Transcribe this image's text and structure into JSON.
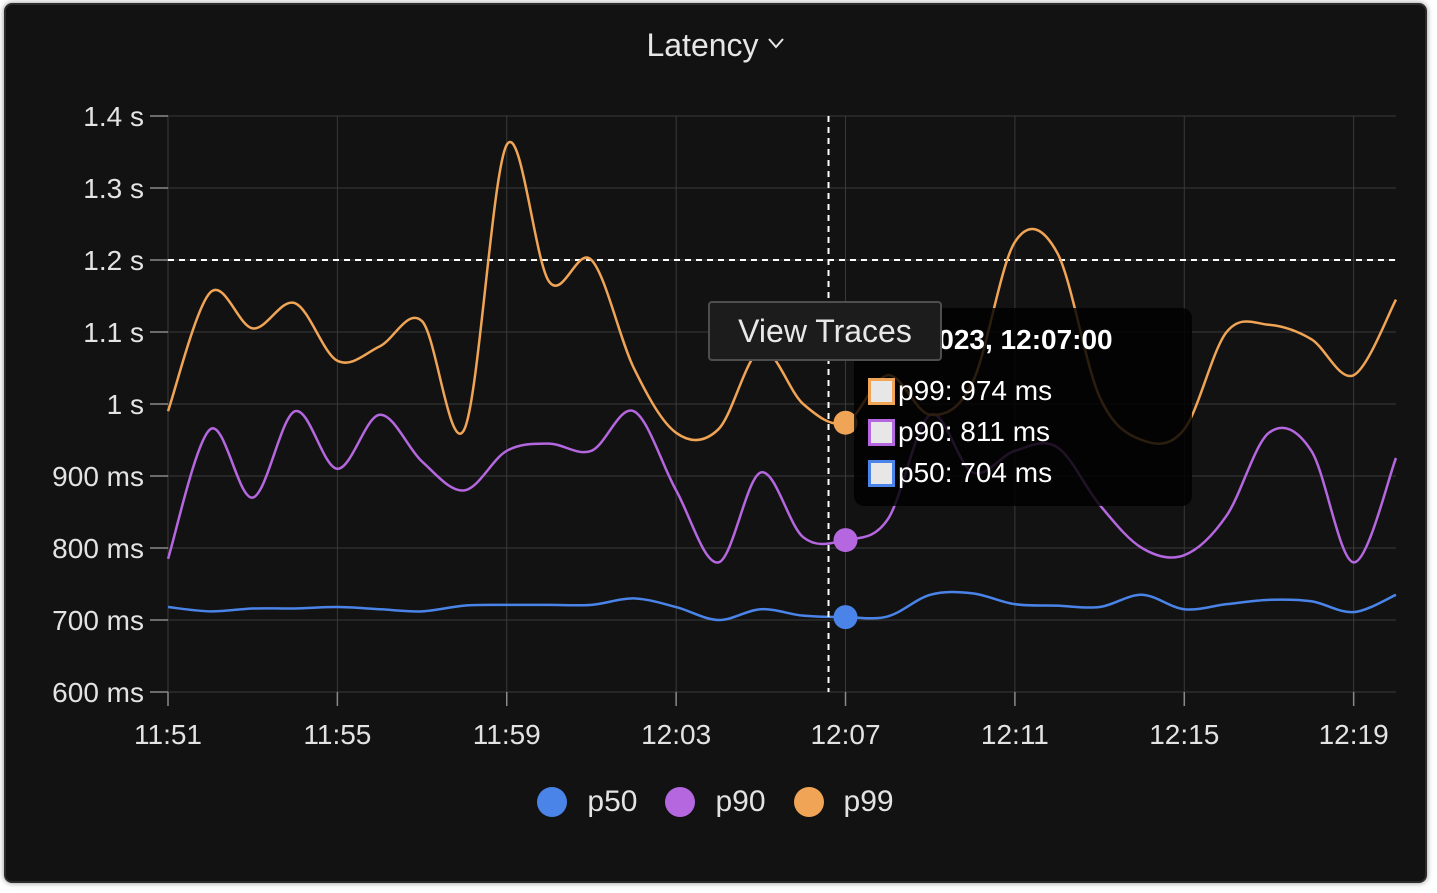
{
  "panel": {
    "title": "Latency"
  },
  "chart_data": {
    "type": "line",
    "title": "Latency",
    "xlabel": "",
    "ylabel": "",
    "x": [
      "11:51",
      "11:52",
      "11:53",
      "11:54",
      "11:55",
      "11:56",
      "11:57",
      "11:58",
      "11:59",
      "12:00",
      "12:01",
      "12:02",
      "12:03",
      "12:04",
      "12:05",
      "12:06",
      "12:07",
      "12:08",
      "12:09",
      "12:10",
      "12:11",
      "12:12",
      "12:13",
      "12:14",
      "12:15",
      "12:16",
      "12:17",
      "12:18",
      "12:19",
      "12:20"
    ],
    "x_tick_labels": [
      "11:51",
      "11:55",
      "11:59",
      "12:03",
      "12:07",
      "12:11",
      "12:15",
      "12:19"
    ],
    "y_tick_labels": [
      "1.4 s",
      "1.3 s",
      "1.2 s",
      "1.1 s",
      "1 s",
      "900 ms",
      "800 ms",
      "700 ms",
      "600 ms"
    ],
    "y_unit": "ms",
    "ylim": [
      600,
      1400
    ],
    "grid": true,
    "legend_position": "bottom",
    "series": [
      {
        "name": "p50",
        "color": "#4a84e8",
        "values": [
          718,
          712,
          716,
          716,
          718,
          715,
          712,
          720,
          721,
          721,
          721,
          730,
          718,
          700,
          715,
          706,
          704,
          705,
          735,
          737,
          722,
          720,
          718,
          735,
          715,
          722,
          728,
          726,
          711,
          735
        ]
      },
      {
        "name": "p90",
        "color": "#b467de",
        "values": [
          785,
          965,
          870,
          990,
          910,
          985,
          920,
          880,
          935,
          945,
          935,
          990,
          880,
          780,
          905,
          815,
          811,
          840,
          985,
          905,
          935,
          940,
          860,
          800,
          790,
          845,
          960,
          935,
          780,
          925
        ]
      },
      {
        "name": "p99",
        "color": "#f0a455",
        "values": [
          990,
          1155,
          1105,
          1140,
          1060,
          1080,
          1115,
          965,
          1360,
          1170,
          1200,
          1050,
          960,
          965,
          1075,
          1000,
          974,
          1040,
          985,
          1030,
          1225,
          1210,
          1010,
          950,
          965,
          1100,
          1110,
          1090,
          1040,
          1145
        ]
      }
    ],
    "threshold": {
      "value": 1200,
      "style": "dashed"
    },
    "hover": {
      "x": "12:07"
    },
    "tooltip": {
      "title": "03, 2023, 12:07:00",
      "rows": [
        {
          "series": "p99",
          "text": "p99: 974 ms",
          "color": "#f0a455"
        },
        {
          "series": "p90",
          "text": "p90: 811 ms",
          "color": "#b467de"
        },
        {
          "series": "p50",
          "text": "p50: 704 ms",
          "color": "#4a84e8"
        }
      ]
    }
  },
  "actions": {
    "view_traces": "View Traces"
  },
  "colors": {
    "background": "#121212",
    "grid": "#3a3a3a",
    "text": "#e3e3e3"
  }
}
